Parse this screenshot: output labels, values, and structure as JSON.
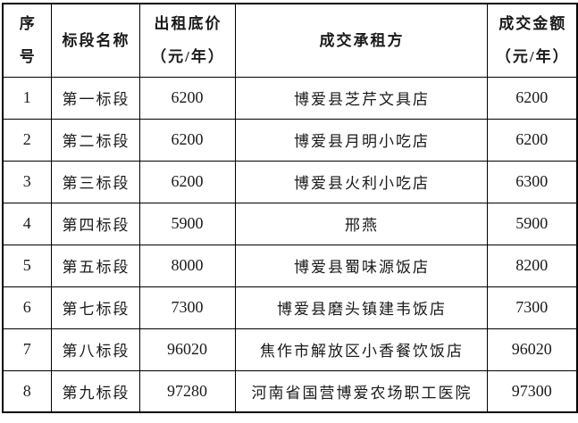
{
  "colors": {
    "border": "#000000",
    "text": "#1a1a1a",
    "background": "#ffffff"
  },
  "table": {
    "columns": [
      {
        "id": "index",
        "type": "num",
        "header_lines": [
          "序",
          "号"
        ]
      },
      {
        "id": "section-name",
        "type": "text",
        "header_lines": [
          "标段名称"
        ]
      },
      {
        "id": "base-rent",
        "type": "num",
        "header_lines": [
          "出租底价",
          "（元/年）"
        ]
      },
      {
        "id": "lessee",
        "type": "text",
        "header_lines": [
          "成交承租方"
        ]
      },
      {
        "id": "deal-amount",
        "type": "num",
        "header_lines": [
          "成交金额",
          "（元/年）"
        ]
      }
    ],
    "rows": [
      [
        "1",
        "第一标段",
        "6200",
        "博爱县芝芹文具店",
        "6200"
      ],
      [
        "2",
        "第二标段",
        "6200",
        "博爱县月明小吃店",
        "6200"
      ],
      [
        "3",
        "第三标段",
        "6200",
        "博爱县火利小吃店",
        "6300"
      ],
      [
        "4",
        "第四标段",
        "5900",
        "邢燕",
        "5900"
      ],
      [
        "5",
        "第五标段",
        "8000",
        "博爱县蜀味源饭店",
        "8200"
      ],
      [
        "6",
        "第七标段",
        "7300",
        "博爱县磨头镇建韦饭店",
        "7300"
      ],
      [
        "7",
        "第八标段",
        "96020",
        "焦作市解放区小香餐饮饭店",
        "96020"
      ],
      [
        "8",
        "第九标段",
        "97280",
        "河南省国营博爱农场职工医院",
        "97300"
      ]
    ]
  }
}
